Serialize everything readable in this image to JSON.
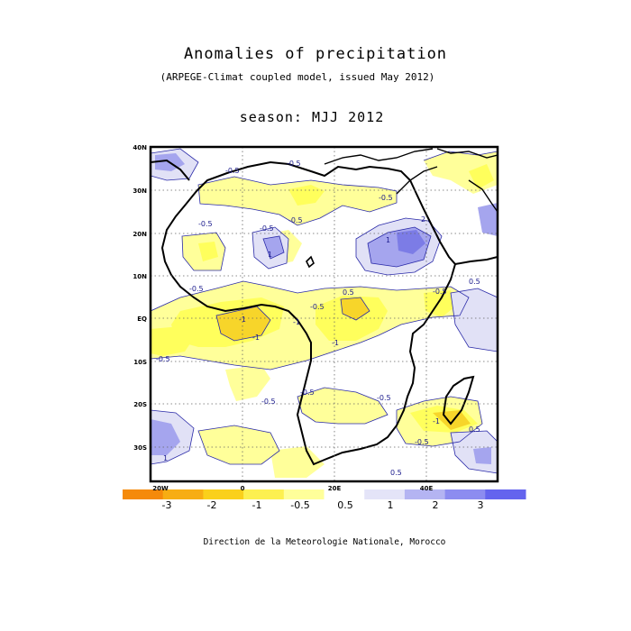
{
  "title": "Anomalies of precipitation",
  "subtitle": "(ARPEGE-Climat coupled model, issued May 2012)",
  "season": "season: MJJ 2012",
  "credit": "Direction de la Meteorologie Nationale, Morocco",
  "map": {
    "lat_ticks": [
      "40N",
      "30N",
      "20N",
      "10N",
      "EQ",
      "10S",
      "20S",
      "30S"
    ],
    "lon_ticks": [
      "20W",
      "0",
      "20E",
      "40E"
    ],
    "contour_labels": [
      "-0.5",
      "-0.5",
      "-0.5",
      "-0.5",
      "-0.5",
      "-0.5",
      "-0.5",
      "1",
      "-0.5",
      "-1",
      "-1",
      "-1",
      "-1",
      "0.5",
      "-0.5",
      "2",
      "1",
      "-0.5",
      "-0.5",
      "-0.5",
      "-0.5",
      "-0.5",
      "-1",
      "0.5",
      "1",
      "0.5",
      "0.5"
    ]
  },
  "colorbar": {
    "labels": [
      "-3",
      "-2",
      "-1",
      "-0.5",
      "0.5",
      "1",
      "2",
      "3"
    ],
    "colors": [
      "#f58a0a",
      "#f7ad13",
      "#fad01b",
      "#fdf050",
      "#ffff9a",
      "#ffffff",
      "#e4e4f8",
      "#b4b4f2",
      "#8c8cf0",
      "#6464ee"
    ]
  },
  "palette": {
    "yellow_light": "#ffff9a",
    "yellow": "#ffff5c",
    "gold": "#f7d52a",
    "blue_light": "#e1e1f6",
    "blue": "#a5a5ee",
    "blue_dark": "#7c7ce6",
    "contour": "#2a2aa8"
  }
}
